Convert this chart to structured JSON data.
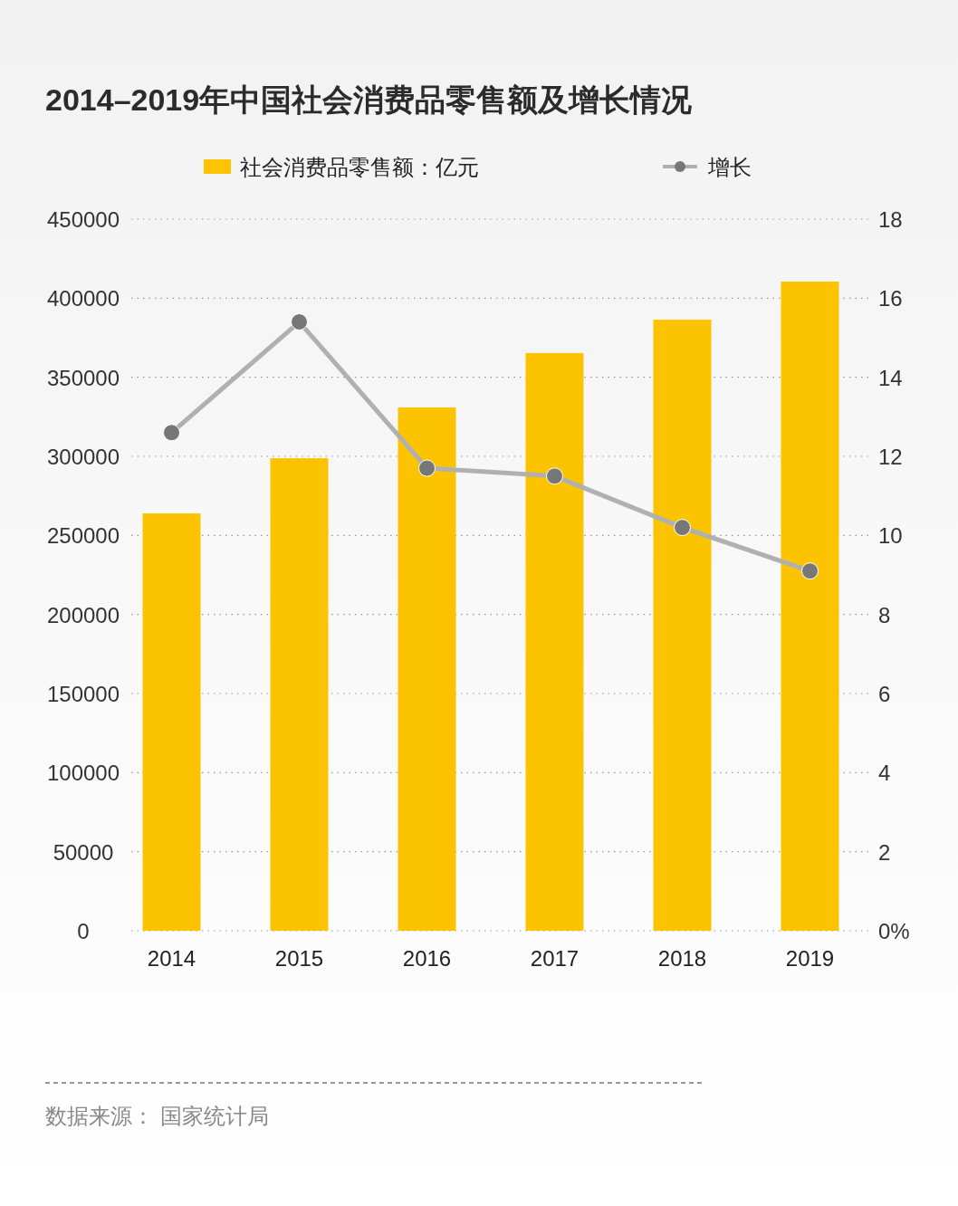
{
  "chart_data": {
    "type": "bar",
    "title": "2014–2019年中国社会消费品零售额及增长情况",
    "categories": [
      "2014",
      "2015",
      "2016",
      "2017",
      "2018",
      "2019"
    ],
    "series": [
      {
        "name": "社会消费品零售额：亿元",
        "color": "#fcc400",
        "values": [
          263900,
          298800,
          330900,
          365300,
          386400,
          410500
        ]
      },
      {
        "name": "增长",
        "type": "line",
        "axis": "y2",
        "color": "#b0b0b0",
        "marker": "circle",
        "values": [
          12.6,
          15.4,
          11.7,
          11.5,
          10.2,
          9.1
        ]
      }
    ],
    "ylim": [
      0,
      450000
    ],
    "yticks": [
      0,
      50000,
      100000,
      150000,
      200000,
      250000,
      300000,
      350000,
      400000,
      450000
    ],
    "y2lim": [
      0,
      18
    ],
    "y2ticks": [
      {
        "value": 0,
        "label": "0%"
      },
      2,
      4,
      6,
      8,
      10,
      12,
      14,
      16,
      18
    ],
    "grid": "y",
    "legend": "top",
    "annotations": [
      "数据来源：  国家统计局"
    ]
  }
}
